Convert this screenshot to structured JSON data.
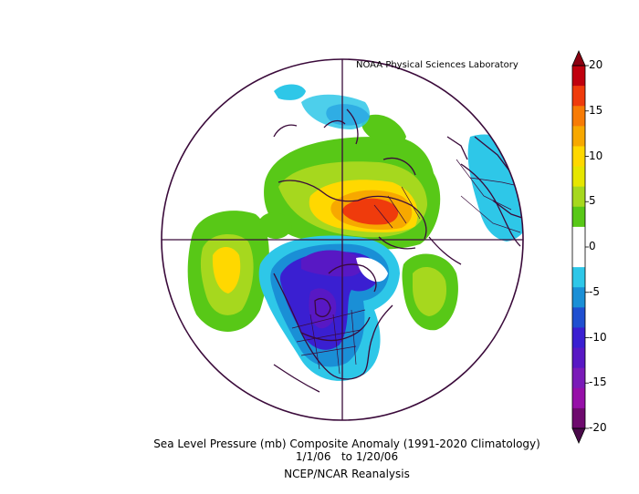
{
  "credit": "NOAA Physical Sciences Laboratory",
  "caption": {
    "line1": "Sea Level Pressure (mb) Composite Anomaly (1991-2020 Climatology)",
    "line2": "1/1/06   to 1/20/06",
    "line3": "NCEP/NCAR Reanalysis"
  },
  "colorbar": {
    "labels": [
      "20",
      "15",
      "10",
      "5",
      "0",
      "-5",
      "-10",
      "-15",
      "-20"
    ],
    "colors": [
      "#c0000e",
      "#ef3b0c",
      "#f77b05",
      "#f7a800",
      "#ffd800",
      "#e6e600",
      "#a6d81e",
      "#58c817",
      "#ffffff",
      "#ffffff",
      "#2ec7e8",
      "#1a8fd6",
      "#1f4fd0",
      "#3a1fd1",
      "#5818c4",
      "#7a1bb8",
      "#960fa8",
      "#6e0a6e"
    ]
  }
}
